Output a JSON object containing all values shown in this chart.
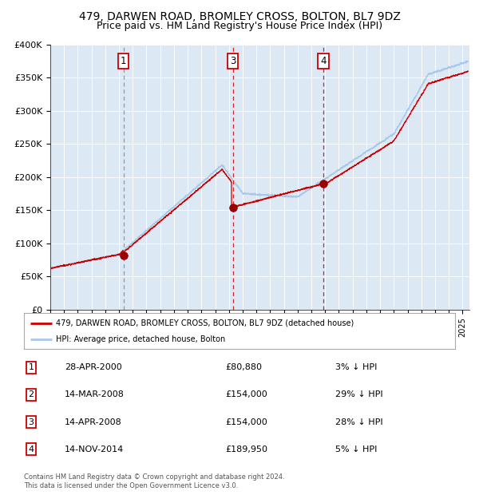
{
  "title": "479, DARWEN ROAD, BROMLEY CROSS, BOLTON, BL7 9DZ",
  "subtitle": "Price paid vs. HM Land Registry's House Price Index (HPI)",
  "plot_bg_color": "#dce9f5",
  "hpi_color": "#a8c8e8",
  "price_color": "#cc0000",
  "sale_dot_color": "#990000",
  "ylim": [
    0,
    400000
  ],
  "yticks": [
    0,
    50000,
    100000,
    150000,
    200000,
    250000,
    300000,
    350000,
    400000
  ],
  "ytick_labels": [
    "£0",
    "£50K",
    "£100K",
    "£150K",
    "£200K",
    "£250K",
    "£300K",
    "£350K",
    "£400K"
  ],
  "xlim_start": 1995.0,
  "xlim_end": 2025.5,
  "sales": [
    {
      "label": "1",
      "date": 2000.32,
      "price": 80880,
      "line_style": "dashed_gray"
    },
    {
      "label": "3",
      "date": 2008.28,
      "price": 154000,
      "line_style": "dashed_red"
    },
    {
      "label": "4",
      "date": 2014.87,
      "price": 189950,
      "line_style": "dashed_red"
    }
  ],
  "table_rows": [
    [
      "1",
      "28-APR-2000",
      "£80,880",
      "3% ↓ HPI"
    ],
    [
      "2",
      "14-MAR-2008",
      "£154,000",
      "29% ↓ HPI"
    ],
    [
      "3",
      "14-APR-2008",
      "£154,000",
      "28% ↓ HPI"
    ],
    [
      "4",
      "14-NOV-2014",
      "£189,950",
      "5% ↓ HPI"
    ]
  ],
  "legend_line1": "479, DARWEN ROAD, BROMLEY CROSS, BOLTON, BL7 9DZ (detached house)",
  "legend_line2": "HPI: Average price, detached house, Bolton",
  "footer": "Contains HM Land Registry data © Crown copyright and database right 2024.\nThis data is licensed under the Open Government Licence v3.0.",
  "title_fontsize": 10,
  "subtitle_fontsize": 9
}
